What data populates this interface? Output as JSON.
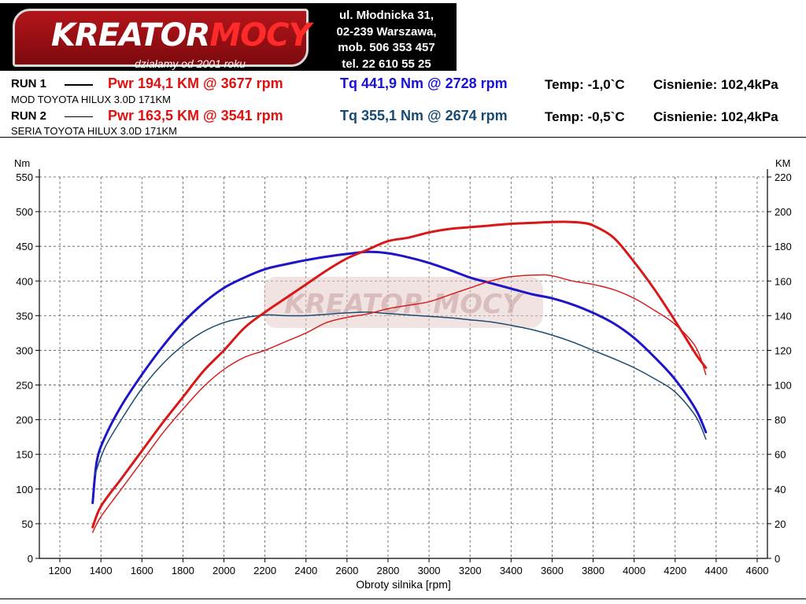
{
  "header": {
    "brand": {
      "word_white": "KREATOR",
      "word_red": "MOCY",
      "slogan": "działamy od 2001 roku"
    },
    "contact": [
      "ul. Młodnicka 31,",
      "02-239  Warszawa,",
      "mob.  506 353 457",
      "tel.  22 610 55 25"
    ]
  },
  "runs": [
    {
      "label": "RUN 1",
      "pwr": "Pwr  194,1 KM @ 3677 rpm",
      "tq": "Tq 441,9 Nm @ 2728 rpm",
      "temp": "Temp: -1,0`C",
      "pressure": "Cisnienie: 102,4kPa",
      "description": "MOD TOYOTA HILUX 3.0D 171KM",
      "tq_color": "#1a10d8"
    },
    {
      "label": "RUN 2",
      "pwr": "Pwr  163,5 KM @ 3541 rpm",
      "tq": "Tq 355,1 Nm @ 2674 rpm",
      "temp": "Temp: -0,5`C",
      "pressure": "Cisnienie: 102,4kPa",
      "description": "SERIA TOYOTA HILUX 3.0D 171KM",
      "tq_color": "#174a72"
    }
  ],
  "chart_data": {
    "type": "line",
    "xlabel": "Obroty silnika [rpm]",
    "ylabel_left": "Nm",
    "ylabel_right": "KM",
    "xlim": [
      1100,
      4650
    ],
    "ylim_left": [
      0,
      550
    ],
    "ylim_right": [
      0,
      220
    ],
    "x_ticks": [
      "1200",
      "1400",
      "1600",
      "1800",
      "2000",
      "2200",
      "2400",
      "2600",
      "2800",
      "3000",
      "3200",
      "3400",
      "3600",
      "3800",
      "4000",
      "4200",
      "4400",
      "4600"
    ],
    "y_left_ticks": [
      "0",
      "50",
      "100",
      "150",
      "200",
      "250",
      "300",
      "350",
      "400",
      "450",
      "500",
      "550"
    ],
    "y_right_ticks": [
      "0",
      "20",
      "40",
      "60",
      "80",
      "100",
      "120",
      "140",
      "160",
      "180",
      "200",
      "220"
    ],
    "grid": true,
    "watermark": "KREATOR MOCY",
    "series": [
      {
        "name": "RUN 1",
        "quantity": "torque",
        "axis": "left",
        "color": "#1f15c8",
        "width": 3,
        "points": [
          [
            1360,
            80
          ],
          [
            1380,
            140
          ],
          [
            1420,
            175
          ],
          [
            1500,
            220
          ],
          [
            1600,
            265
          ],
          [
            1700,
            305
          ],
          [
            1800,
            340
          ],
          [
            1900,
            368
          ],
          [
            2000,
            390
          ],
          [
            2100,
            405
          ],
          [
            2200,
            417
          ],
          [
            2300,
            424
          ],
          [
            2400,
            430
          ],
          [
            2500,
            435
          ],
          [
            2600,
            439
          ],
          [
            2700,
            441.9
          ],
          [
            2800,
            440
          ],
          [
            2900,
            434
          ],
          [
            3000,
            426
          ],
          [
            3100,
            416
          ],
          [
            3200,
            405
          ],
          [
            3300,
            397
          ],
          [
            3400,
            389
          ],
          [
            3500,
            381
          ],
          [
            3600,
            375
          ],
          [
            3700,
            366
          ],
          [
            3800,
            354
          ],
          [
            3900,
            339
          ],
          [
            4000,
            318
          ],
          [
            4100,
            290
          ],
          [
            4200,
            258
          ],
          [
            4300,
            215
          ],
          [
            4350,
            182
          ]
        ]
      },
      {
        "name": "RUN 2",
        "quantity": "torque",
        "axis": "left",
        "color": "#1c4a6e",
        "width": 1.5,
        "points": [
          [
            1370,
            120
          ],
          [
            1420,
            160
          ],
          [
            1500,
            200
          ],
          [
            1600,
            245
          ],
          [
            1700,
            280
          ],
          [
            1800,
            307
          ],
          [
            1900,
            327
          ],
          [
            2000,
            340
          ],
          [
            2100,
            347
          ],
          [
            2200,
            351
          ],
          [
            2300,
            350
          ],
          [
            2400,
            350
          ],
          [
            2500,
            352
          ],
          [
            2600,
            354
          ],
          [
            2700,
            355.1
          ],
          [
            2800,
            353
          ],
          [
            2900,
            351
          ],
          [
            3000,
            349
          ],
          [
            3100,
            347
          ],
          [
            3200,
            344
          ],
          [
            3300,
            341
          ],
          [
            3400,
            336
          ],
          [
            3500,
            330
          ],
          [
            3600,
            322
          ],
          [
            3700,
            312
          ],
          [
            3800,
            300
          ],
          [
            3900,
            288
          ],
          [
            4000,
            275
          ],
          [
            4100,
            259
          ],
          [
            4200,
            240
          ],
          [
            4300,
            205
          ],
          [
            4350,
            172
          ]
        ]
      },
      {
        "name": "RUN 1",
        "quantity": "power",
        "axis": "right",
        "color": "#d81818",
        "width": 3,
        "points": [
          [
            1360,
            18
          ],
          [
            1400,
            30
          ],
          [
            1500,
            46
          ],
          [
            1600,
            62
          ],
          [
            1700,
            78
          ],
          [
            1800,
            93
          ],
          [
            1900,
            108
          ],
          [
            2000,
            120
          ],
          [
            2100,
            133
          ],
          [
            2200,
            142
          ],
          [
            2300,
            150
          ],
          [
            2400,
            158
          ],
          [
            2500,
            166
          ],
          [
            2600,
            173
          ],
          [
            2700,
            178
          ],
          [
            2800,
            183
          ],
          [
            2900,
            185
          ],
          [
            3000,
            188
          ],
          [
            3100,
            190
          ],
          [
            3200,
            191
          ],
          [
            3300,
            192
          ],
          [
            3400,
            193
          ],
          [
            3500,
            193.5
          ],
          [
            3600,
            194
          ],
          [
            3677,
            194.1
          ],
          [
            3750,
            193.5
          ],
          [
            3800,
            192
          ],
          [
            3900,
            185
          ],
          [
            4000,
            171
          ],
          [
            4100,
            155
          ],
          [
            4200,
            137
          ],
          [
            4300,
            118
          ],
          [
            4350,
            110
          ]
        ]
      },
      {
        "name": "RUN 2",
        "quantity": "power",
        "axis": "right",
        "color": "#d42020",
        "width": 1.5,
        "points": [
          [
            1360,
            15
          ],
          [
            1400,
            24
          ],
          [
            1500,
            40
          ],
          [
            1600,
            56
          ],
          [
            1700,
            72
          ],
          [
            1800,
            86
          ],
          [
            1900,
            99
          ],
          [
            2000,
            109
          ],
          [
            2100,
            116
          ],
          [
            2200,
            120
          ],
          [
            2300,
            125
          ],
          [
            2400,
            130
          ],
          [
            2500,
            136
          ],
          [
            2600,
            139
          ],
          [
            2700,
            141
          ],
          [
            2800,
            144
          ],
          [
            2900,
            146
          ],
          [
            3000,
            148
          ],
          [
            3100,
            152
          ],
          [
            3200,
            156
          ],
          [
            3300,
            160
          ],
          [
            3400,
            162.5
          ],
          [
            3541,
            163.5
          ],
          [
            3600,
            163
          ],
          [
            3700,
            160
          ],
          [
            3800,
            158
          ],
          [
            3900,
            155
          ],
          [
            4000,
            150
          ],
          [
            4100,
            143
          ],
          [
            4200,
            135
          ],
          [
            4300,
            122
          ],
          [
            4350,
            106
          ]
        ]
      }
    ]
  }
}
